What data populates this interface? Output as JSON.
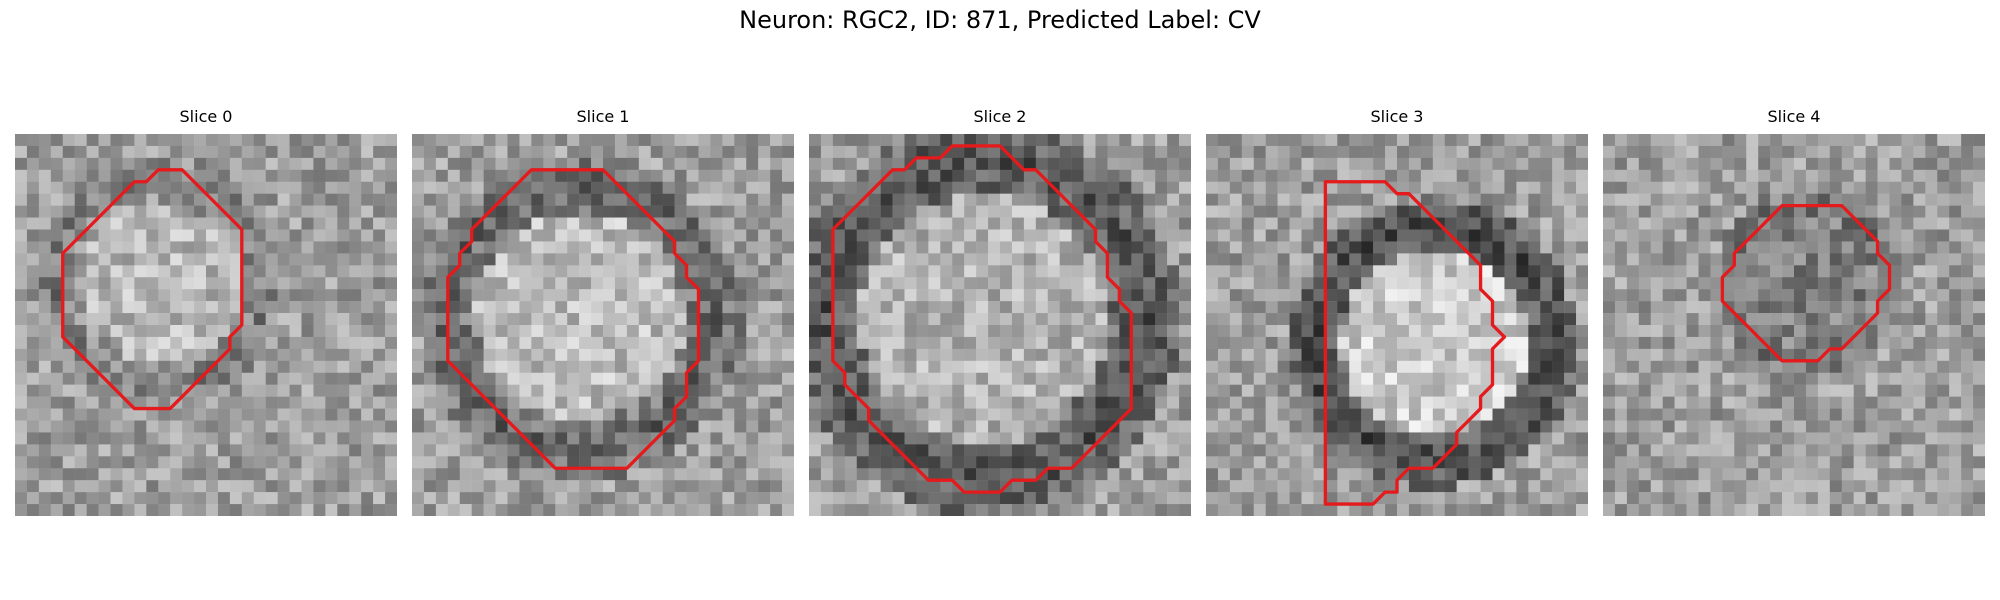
{
  "figure": {
    "title": "Neuron: RGC2, ID: 871, Predicted Label: CV",
    "contour_color": "#e41a1c"
  },
  "panels": [
    {
      "title": "Slice 0",
      "seed": 11,
      "ring": 0.6,
      "center": 0.72,
      "outline": [
        [
          12,
          3
        ],
        [
          14,
          3
        ],
        [
          15,
          4
        ],
        [
          17,
          6
        ],
        [
          19,
          8
        ],
        [
          19,
          16
        ],
        [
          18,
          17
        ],
        [
          18,
          18
        ],
        [
          17,
          19
        ],
        [
          15,
          21
        ],
        [
          13,
          23
        ],
        [
          10,
          23
        ],
        [
          8,
          21
        ],
        [
          6,
          19
        ],
        [
          4,
          17
        ],
        [
          4,
          10
        ],
        [
          6,
          8
        ],
        [
          8,
          6
        ],
        [
          10,
          4
        ],
        [
          11,
          4
        ]
      ]
    },
    {
      "title": "Slice 1",
      "seed": 23,
      "ring": 0.52,
      "center": 0.74,
      "outline": [
        [
          10,
          3
        ],
        [
          16,
          3
        ],
        [
          17,
          4
        ],
        [
          18,
          5
        ],
        [
          19,
          6
        ],
        [
          20,
          7
        ],
        [
          21,
          8
        ],
        [
          22,
          9
        ],
        [
          22,
          10
        ],
        [
          23,
          11
        ],
        [
          23,
          12
        ],
        [
          24,
          13
        ],
        [
          24,
          14
        ],
        [
          24,
          16
        ],
        [
          24,
          19
        ],
        [
          23,
          20
        ],
        [
          23,
          22
        ],
        [
          22,
          23
        ],
        [
          22,
          24
        ],
        [
          21,
          25
        ],
        [
          20,
          26
        ],
        [
          19,
          27
        ],
        [
          18,
          28
        ],
        [
          12,
          28
        ],
        [
          11,
          27
        ],
        [
          10,
          26
        ],
        [
          9,
          25
        ],
        [
          8,
          24
        ],
        [
          7,
          23
        ],
        [
          6,
          22
        ],
        [
          5,
          21
        ],
        [
          4,
          20
        ],
        [
          3,
          19
        ],
        [
          3,
          18
        ],
        [
          3,
          12
        ],
        [
          4,
          11
        ],
        [
          4,
          10
        ],
        [
          5,
          9
        ],
        [
          5,
          8
        ],
        [
          6,
          7
        ],
        [
          7,
          6
        ],
        [
          8,
          5
        ],
        [
          9,
          4
        ]
      ]
    },
    {
      "title": "Slice 2",
      "seed": 37,
      "ring": 0.45,
      "center": 0.7,
      "outline": [
        [
          12,
          1
        ],
        [
          16,
          1
        ],
        [
          17,
          2
        ],
        [
          18,
          3
        ],
        [
          19,
          3
        ],
        [
          20,
          4
        ],
        [
          21,
          5
        ],
        [
          22,
          6
        ],
        [
          23,
          7
        ],
        [
          24,
          8
        ],
        [
          24,
          9
        ],
        [
          25,
          10
        ],
        [
          25,
          12
        ],
        [
          26,
          13
        ],
        [
          26,
          14
        ],
        [
          27,
          15
        ],
        [
          27,
          23
        ],
        [
          26,
          24
        ],
        [
          25,
          25
        ],
        [
          24,
          26
        ],
        [
          23,
          27
        ],
        [
          22,
          28
        ],
        [
          20,
          28
        ],
        [
          19,
          29
        ],
        [
          17,
          29
        ],
        [
          16,
          30
        ],
        [
          13,
          30
        ],
        [
          12,
          29
        ],
        [
          10,
          29
        ],
        [
          9,
          28
        ],
        [
          8,
          27
        ],
        [
          7,
          26
        ],
        [
          6,
          25
        ],
        [
          5,
          24
        ],
        [
          5,
          23
        ],
        [
          4,
          22
        ],
        [
          3,
          21
        ],
        [
          3,
          20
        ],
        [
          2,
          19
        ],
        [
          2,
          8
        ],
        [
          3,
          7
        ],
        [
          4,
          6
        ],
        [
          5,
          5
        ],
        [
          6,
          4
        ],
        [
          7,
          3
        ],
        [
          8,
          3
        ],
        [
          9,
          2
        ],
        [
          11,
          2
        ]
      ]
    },
    {
      "title": "Slice 3",
      "seed": 53,
      "ring": 0.42,
      "center": 0.8,
      "outline": [
        [
          10,
          4
        ],
        [
          15,
          4
        ],
        [
          16,
          5
        ],
        [
          17,
          5
        ],
        [
          18,
          6
        ],
        [
          19,
          7
        ],
        [
          20,
          8
        ],
        [
          21,
          9
        ],
        [
          22,
          10
        ],
        [
          23,
          11
        ],
        [
          23,
          13
        ],
        [
          24,
          14
        ],
        [
          24,
          16
        ],
        [
          25,
          17
        ],
        [
          24,
          18
        ],
        [
          24,
          21
        ],
        [
          23,
          22
        ],
        [
          23,
          23
        ],
        [
          22,
          24
        ],
        [
          21,
          25
        ],
        [
          21,
          26
        ],
        [
          20,
          27
        ],
        [
          19,
          28
        ],
        [
          17,
          28
        ],
        [
          16,
          29
        ],
        [
          16,
          30
        ],
        [
          15,
          30
        ],
        [
          14,
          31
        ],
        [
          10,
          31
        ],
        [
          10,
          4
        ]
      ]
    },
    {
      "title": "Slice 4",
      "seed": 71,
      "ring": 0.55,
      "center": 0.5,
      "outline": [
        [
          16,
          6
        ],
        [
          20,
          6
        ],
        [
          21,
          7
        ],
        [
          22,
          8
        ],
        [
          23,
          9
        ],
        [
          23,
          10
        ],
        [
          24,
          11
        ],
        [
          24,
          13
        ],
        [
          23,
          14
        ],
        [
          23,
          15
        ],
        [
          22,
          16
        ],
        [
          21,
          17
        ],
        [
          20,
          18
        ],
        [
          19,
          18
        ],
        [
          18,
          19
        ],
        [
          15,
          19
        ],
        [
          14,
          18
        ],
        [
          13,
          17
        ],
        [
          12,
          16
        ],
        [
          11,
          15
        ],
        [
          10,
          14
        ],
        [
          10,
          12
        ],
        [
          11,
          11
        ],
        [
          11,
          10
        ],
        [
          12,
          9
        ],
        [
          13,
          8
        ],
        [
          14,
          7
        ],
        [
          15,
          6
        ]
      ]
    }
  ]
}
